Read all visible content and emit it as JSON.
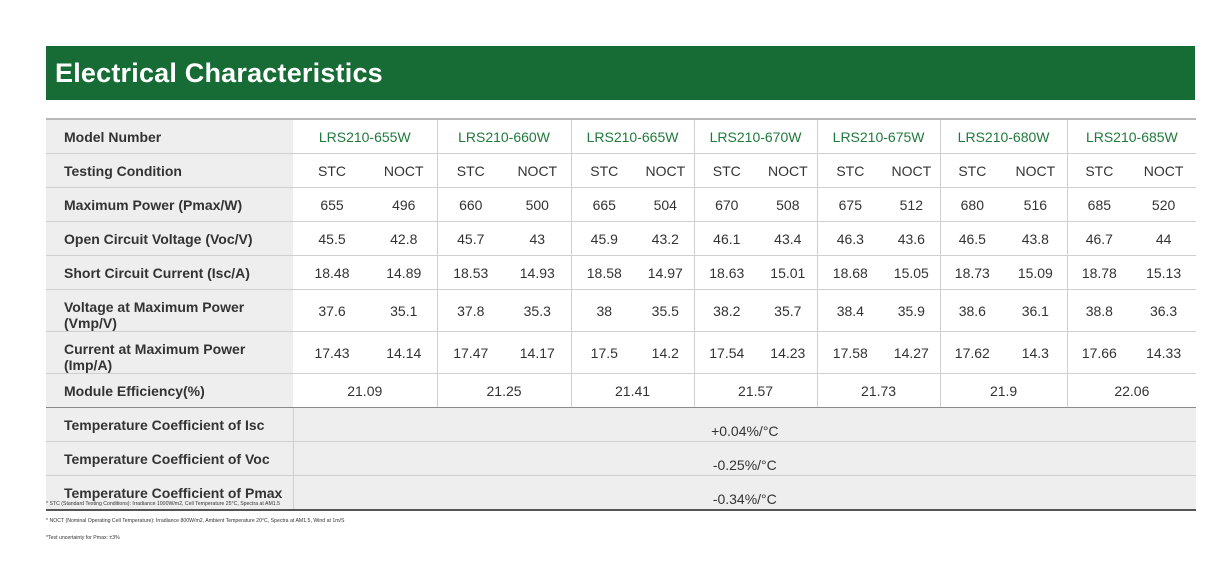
{
  "title": "Electrical Characteristics",
  "row_labels": {
    "model": "Model Number",
    "condition": "Testing Condition",
    "pmax": "Maximum Power (Pmax/W)",
    "voc": "Open Circuit Voltage (Voc/V)",
    "isc": "Short Circuit Current (Isc/A)",
    "vmp": "Voltage at Maximum Power (Vmp/V)",
    "imp": "Current at Maximum Power (Imp/A)",
    "eff": "Module Efficiency(%)",
    "tc_isc": "Temperature Coefficient of Isc",
    "tc_voc": "Temperature Coefficient of Voc",
    "tc_pmax": "Temperature Coefficient of Pmax"
  },
  "condition_labels": {
    "stc": "STC",
    "noct": "NOCT"
  },
  "models": [
    {
      "name": "LRS210-655W",
      "pmax": [
        "655",
        "496"
      ],
      "voc": [
        "45.5",
        "42.8"
      ],
      "isc": [
        "18.48",
        "14.89"
      ],
      "vmp": [
        "37.6",
        "35.1"
      ],
      "imp": [
        "17.43",
        "14.14"
      ],
      "eff": "21.09"
    },
    {
      "name": "LRS210-660W",
      "pmax": [
        "660",
        "500"
      ],
      "voc": [
        "45.7",
        "43"
      ],
      "isc": [
        "18.53",
        "14.93"
      ],
      "vmp": [
        "37.8",
        "35.3"
      ],
      "imp": [
        "17.47",
        "14.17"
      ],
      "eff": "21.25"
    },
    {
      "name": "LRS210-665W",
      "pmax": [
        "665",
        "504"
      ],
      "voc": [
        "45.9",
        "43.2"
      ],
      "isc": [
        "18.58",
        "14.97"
      ],
      "vmp": [
        "38",
        "35.5"
      ],
      "imp": [
        "17.5",
        "14.2"
      ],
      "eff": "21.41"
    },
    {
      "name": "LRS210-670W",
      "pmax": [
        "670",
        "508"
      ],
      "voc": [
        "46.1",
        "43.4"
      ],
      "isc": [
        "18.63",
        "15.01"
      ],
      "vmp": [
        "38.2",
        "35.7"
      ],
      "imp": [
        "17.54",
        "14.23"
      ],
      "eff": "21.57"
    },
    {
      "name": "LRS210-675W",
      "pmax": [
        "675",
        "512"
      ],
      "voc": [
        "46.3",
        "43.6"
      ],
      "isc": [
        "18.68",
        "15.05"
      ],
      "vmp": [
        "38.4",
        "35.9"
      ],
      "imp": [
        "17.58",
        "14.27"
      ],
      "eff": "21.73"
    },
    {
      "name": "LRS210-680W",
      "pmax": [
        "680",
        "516"
      ],
      "voc": [
        "46.5",
        "43.8"
      ],
      "isc": [
        "18.73",
        "15.09"
      ],
      "vmp": [
        "38.6",
        "36.1"
      ],
      "imp": [
        "17.62",
        "14.3"
      ],
      "eff": "21.9"
    },
    {
      "name": "LRS210-685W",
      "pmax": [
        "685",
        "520"
      ],
      "voc": [
        "46.7",
        "44"
      ],
      "isc": [
        "18.78",
        "15.13"
      ],
      "vmp": [
        "38.8",
        "36.3"
      ],
      "imp": [
        "17.66",
        "14.33"
      ],
      "eff": "22.06"
    }
  ],
  "coefficients": {
    "isc": "+0.04%/°C",
    "voc": "-0.25%/°C",
    "pmax": "-0.34%/°C"
  },
  "footnotes": [
    "* STC (Standard Testing Conditions): Irradiance 1000W/m2, Cell Temperature 25°C, Spectra at AM1.5",
    "* NOCT (Nominal Operating Cell Temperature): Irradiance 800W/m2, Ambient Temperature 20°C, Spectra at AM1.5, Wind at 1m/S",
    "*Test uncertainty for Pmax: ±3%"
  ],
  "colors": {
    "header_bg": "#176c35",
    "model_text": "#1f7a3c",
    "label_bg": "#eeeeee"
  }
}
